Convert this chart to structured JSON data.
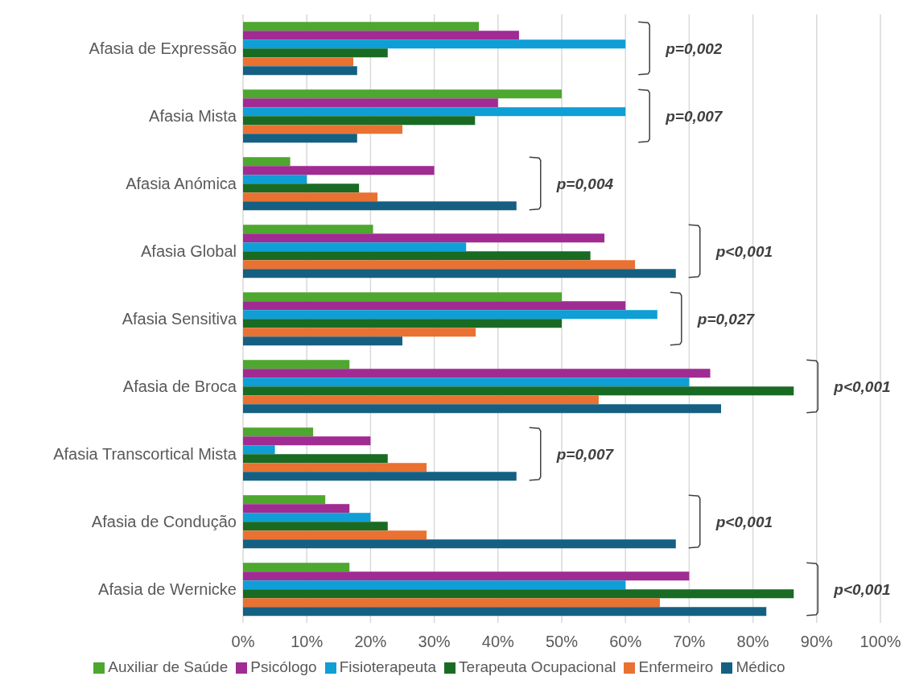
{
  "chart_data": {
    "type": "bar",
    "orientation": "horizontal",
    "categories": [
      "Afasia de Expressão",
      "Afasia Mista",
      "Afasia Anómica",
      "Afasia Global",
      "Afasia Sensitiva",
      "Afasia de Broca",
      "Afasia Transcortical Mista",
      "Afasia de Condução",
      "Afasia de Wernicke"
    ],
    "series": [
      {
        "name": "Auxiliar de Saúde",
        "color": "#4ea72e",
        "values": [
          37.0,
          50,
          7.4,
          20.4,
          50,
          16.7,
          11.0,
          12.9,
          16.7
        ]
      },
      {
        "name": "Psicólogo",
        "color": "#a02b93",
        "values": [
          43.3,
          40,
          30,
          56.7,
          60,
          73.3,
          20,
          16.7,
          70
        ]
      },
      {
        "name": "Fisioterapeuta",
        "color": "#0f9ed5",
        "values": [
          60,
          60,
          10,
          35,
          65,
          70,
          5.0,
          20,
          60
        ]
      },
      {
        "name": "Terapeuta Ocupacional",
        "color": "#196b24",
        "values": [
          22.7,
          36.4,
          18.2,
          54.5,
          50,
          86.4,
          22.7,
          22.7,
          86.4
        ]
      },
      {
        "name": "Enfermeiro",
        "color": "#e97132",
        "values": [
          17.3,
          25,
          21.1,
          61.5,
          36.5,
          55.8,
          28.8,
          28.8,
          65.4
        ]
      },
      {
        "name": "Médico",
        "color": "#156082",
        "values": [
          17.9,
          17.9,
          42.9,
          67.9,
          25,
          75.0,
          42.9,
          67.9,
          82.1
        ]
      }
    ],
    "xlim": [
      0,
      100
    ],
    "xticks": [
      {
        "value": 0,
        "label": "0%"
      },
      {
        "value": 10,
        "label": "10%"
      },
      {
        "value": 20,
        "label": "20%"
      },
      {
        "value": 30,
        "label": "30%"
      },
      {
        "value": 40,
        "label": "40%"
      },
      {
        "value": 50,
        "label": "50%"
      },
      {
        "value": 60,
        "label": "60%"
      },
      {
        "value": 70,
        "label": "70%"
      },
      {
        "value": 80,
        "label": "80%"
      },
      {
        "value": 90,
        "label": "90%"
      },
      {
        "value": 100,
        "label": "100%"
      }
    ],
    "grid": "x",
    "legend": "bottom",
    "annotations": [
      "p=0,002",
      "p=0,007",
      "p=0,004",
      "p<0,001",
      "p=0,027",
      "p<0,001",
      "p=0,007",
      "p<0,001",
      "p<0,001"
    ]
  }
}
